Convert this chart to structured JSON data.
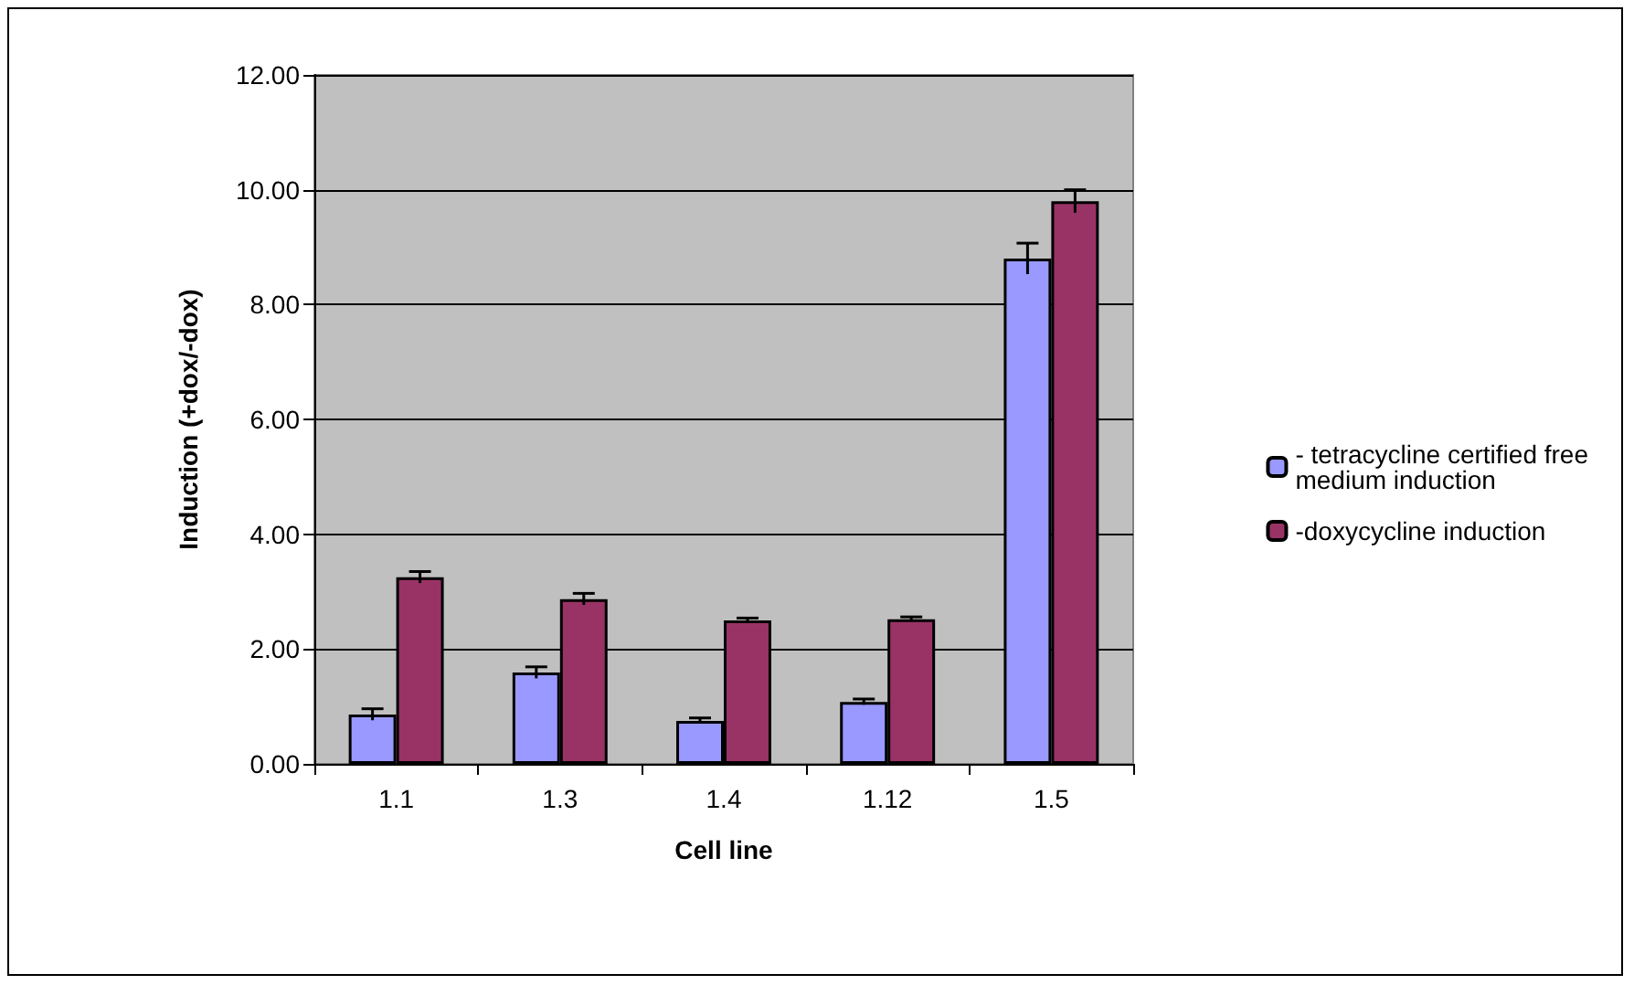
{
  "chart_data": {
    "type": "bar",
    "xlabel": "Cell line",
    "ylabel": "Induction (+dox/-dox)",
    "categories": [
      "1.1",
      "1.3",
      "1.4",
      "1.12",
      "1.5"
    ],
    "series": [
      {
        "name": "- tetracycline certified free medium induction",
        "color": "#9999ff",
        "values": [
          0.86,
          1.59,
          0.75,
          1.08,
          8.8
        ],
        "errors": [
          0.1,
          0.1,
          0.05,
          0.05,
          0.27
        ]
      },
      {
        "name": "-doxycycline induction",
        "color": "#993366",
        "values": [
          3.25,
          2.87,
          2.5,
          2.52,
          9.8
        ],
        "errors": [
          0.1,
          0.1,
          0.04,
          0.04,
          0.2
        ]
      }
    ],
    "ylim": [
      0,
      12
    ],
    "yticks": [
      {
        "value": 0,
        "label": "0.00"
      },
      {
        "value": 2,
        "label": "2.00"
      },
      {
        "value": 4,
        "label": "4.00"
      },
      {
        "value": 6,
        "label": "6.00"
      },
      {
        "value": 8,
        "label": "8.00"
      },
      {
        "value": 10,
        "label": "10.00"
      },
      {
        "value": 12,
        "label": "12.00"
      }
    ],
    "grid": "y",
    "legend": "right"
  }
}
